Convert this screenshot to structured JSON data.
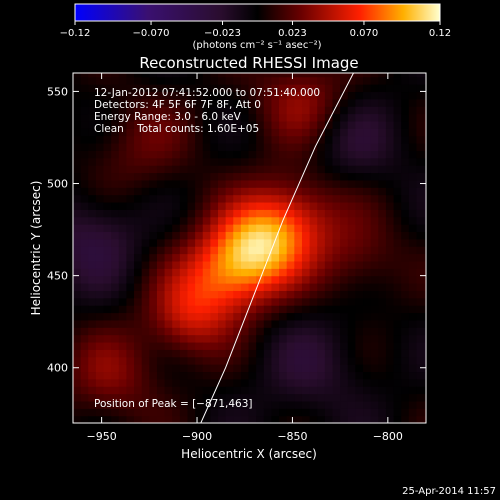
{
  "chart_data": {
    "type": "heatmap",
    "title": "Reconstructed RHESSI Image",
    "xlabel": "Heliocentric X (arcsec)",
    "ylabel": "Heliocentric Y (arcsec)",
    "xlim": [
      -965,
      -780
    ],
    "ylim": [
      370,
      560
    ],
    "x_ticks": [
      -950,
      -900,
      -850,
      -800
    ],
    "x_tick_labels": [
      "−950",
      "−900",
      "−850",
      "−800"
    ],
    "y_ticks": [
      400,
      450,
      500,
      550
    ],
    "y_tick_labels": [
      "400",
      "450",
      "500",
      "550"
    ],
    "colorbar": {
      "min": -0.12,
      "max": 0.12,
      "ticks": [
        -0.12,
        -0.07,
        -0.023,
        0.023,
        0.07,
        0.12
      ],
      "tick_labels": [
        "−0.12",
        "−0.070",
        "−0.023",
        "0.023",
        "0.070",
        "0.12"
      ],
      "unit_label": "(photons cm⁻² s⁻¹ asec⁻²)"
    },
    "annotations": [
      "12-Jan-2012 07:41:52.000 to 07:51:40.000",
      "Detectors: 4F 5F 6F 7F 8F, Att 0",
      "Energy Range: 3.0 - 6.0 keV",
      "Clean    Total counts: 1.60E+05"
    ],
    "peak_label": "Position of Peak = [−871,463]",
    "peak": [
      -871,
      463
    ],
    "limb_curve": [
      [
        -898,
        370
      ],
      [
        -885,
        400
      ],
      [
        -870,
        440
      ],
      [
        -855,
        480
      ],
      [
        -838,
        520
      ],
      [
        -818,
        560
      ]
    ]
  },
  "timestamp": "25-Apr-2014 11:57"
}
